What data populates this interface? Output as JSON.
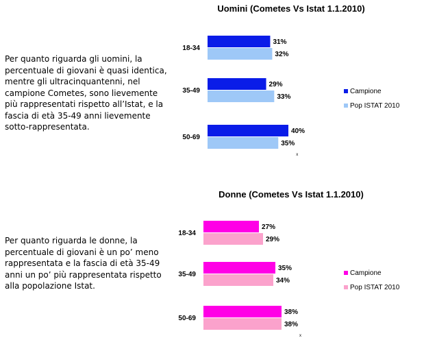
{
  "text": {
    "men_paragraph": "Per quanto riguarda gli uomini, la percentuale di giovani è quasi identica, mentre gli ultracinquantenni, nel campione Cometes, sono lievemente più rappresentati rispetto all’Istat, e la fascia di età 35-49 anni lievemente sotto-rappresentata.",
    "women_paragraph": "Per quanto riguarda le donne, la percentuale di giovani è un po’ meno rappresentata e la fascia di età 35-49 anni un po’ più rappresentata rispetto alla popolazione Istat."
  },
  "chart_data": [
    {
      "type": "bar",
      "orientation": "horizontal",
      "title": "Uomini (Cometes Vs Istat 1.1.2010)",
      "categories": [
        "18-34",
        "35-49",
        "50-69"
      ],
      "series": [
        {
          "name": "Campione",
          "values": [
            31,
            29,
            40
          ],
          "labels": [
            "31%",
            "29%",
            "40%"
          ],
          "color": "#0a1ce8"
        },
        {
          "name": "Pop ISTAT 2010",
          "values": [
            32,
            33,
            35
          ],
          "labels": [
            "32%",
            "33%",
            "35%"
          ],
          "color": "#9ec8f7"
        }
      ],
      "legend": "right",
      "grid": false,
      "note": "x"
    },
    {
      "type": "bar",
      "orientation": "horizontal",
      "title": "Donne (Cometes Vs Istat 1.1.2010)",
      "categories": [
        "18-34",
        "35-49",
        "50-69"
      ],
      "series": [
        {
          "name": "Campione",
          "values": [
            27,
            35,
            38
          ],
          "labels": [
            "27%",
            "35%",
            "38%"
          ],
          "color": "#ff00e6"
        },
        {
          "name": "Pop ISTAT 2010",
          "values": [
            29,
            34,
            38
          ],
          "labels": [
            "29%",
            "34%",
            "38%"
          ],
          "color": "#fba2cc"
        }
      ],
      "legend": "right",
      "grid": false,
      "note": "x"
    }
  ]
}
